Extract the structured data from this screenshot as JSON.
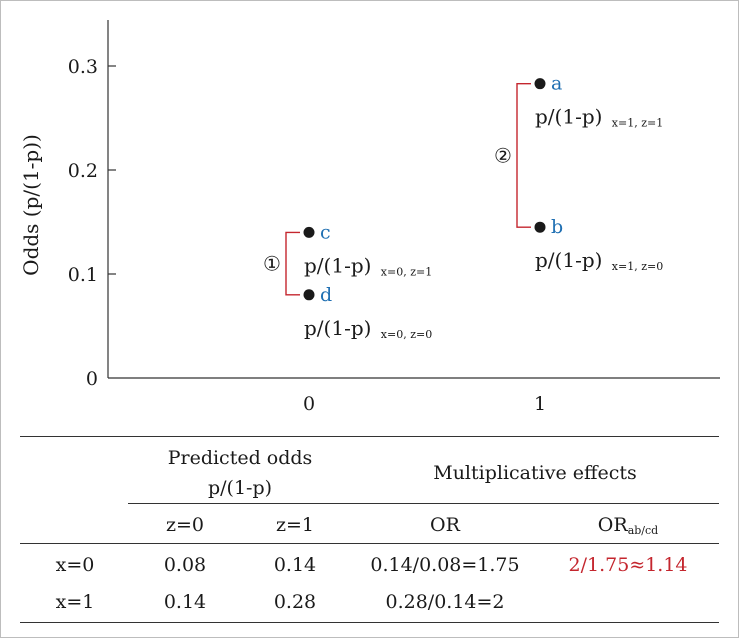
{
  "chart_data": {
    "type": "scatter",
    "ylabel": "Odds (p/(1-p))",
    "xlabel": "",
    "x_ticks": [
      "0",
      "1"
    ],
    "y_ticks": [
      "0",
      "0.1",
      "0.2",
      "0.3"
    ],
    "ylim": [
      0,
      0.33
    ],
    "points": [
      {
        "name": "c",
        "x": 0,
        "y": 0.14,
        "formula": "p/(1-p)",
        "subscript": "x=0, z=1"
      },
      {
        "name": "d",
        "x": 0,
        "y": 0.08,
        "formula": "p/(1-p)",
        "subscript": "x=0, z=0"
      },
      {
        "name": "a",
        "x": 1,
        "y": 0.283,
        "formula": "p/(1-p)",
        "subscript": "x=1, z=1"
      },
      {
        "name": "b",
        "x": 1,
        "y": 0.145,
        "formula": "p/(1-p)",
        "subscript": "x=1, z=0"
      }
    ],
    "brackets": [
      {
        "label": "①",
        "between": [
          "c",
          "d"
        ]
      },
      {
        "label": "②",
        "between": [
          "a",
          "b"
        ]
      }
    ],
    "colors": {
      "marker": "#1a1a1a",
      "point_label": "#1f6fb2",
      "bracket": "#c4262e",
      "axis": "#333333"
    }
  },
  "table": {
    "group_header_1": "Predicted odds",
    "group_header_1_line2": "p/(1-p)",
    "group_header_2": "Multiplicative effects",
    "col_z0": "z=0",
    "col_z1": "z=1",
    "col_or": "OR",
    "col_orabcd_main": "OR",
    "col_orabcd_sub": "ab/cd",
    "rows": [
      {
        "label": "x=0",
        "z0": "0.08",
        "z1": "0.14",
        "or": "0.14/0.08=1.75",
        "orabcd": "2/1.75≈1.14"
      },
      {
        "label": "x=1",
        "z0": "0.14",
        "z1": "0.28",
        "or": "0.28/0.14=2",
        "orabcd": ""
      }
    ],
    "highlight_color": "#c4262e"
  }
}
